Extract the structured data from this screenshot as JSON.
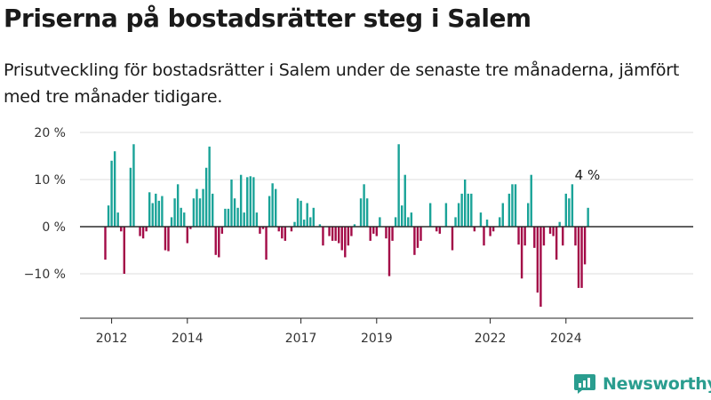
{
  "header": {
    "title": "Priserna på bostadsrätter steg i Salem",
    "subtitle": "Prisutveckling för bostadsrätter i Salem under de senaste tre månaderna, jämfört med tre månader tidigare."
  },
  "brand": {
    "name": "Newsworthy",
    "icon": "newsworthy-logo-icon"
  },
  "colors": {
    "positive": "#1aa398",
    "negative": "#a30a47",
    "grid": "#dddddd",
    "axis": "#222222"
  },
  "chart_data": {
    "type": "bar",
    "x_start": "2011-11",
    "x_step": "1 month",
    "values": [
      -7,
      4.5,
      14,
      16,
      3,
      -1,
      -10,
      0,
      12.5,
      17.5,
      0,
      -2,
      -2.5,
      -1,
      7.3,
      5,
      7,
      5.5,
      6.5,
      -5,
      -5.2,
      2,
      6,
      9,
      4,
      3,
      -3.5,
      -0.5,
      6,
      8,
      6,
      8,
      12.5,
      17,
      7,
      -6,
      -6.5,
      -1.5,
      3.8,
      3.8,
      10,
      6,
      4,
      11,
      3,
      10.5,
      10.7,
      10.5,
      3,
      -1.5,
      -0.5,
      -7,
      6.5,
      9.2,
      8,
      -1,
      -2.5,
      -3,
      0,
      -1,
      1,
      6,
      5.5,
      1.5,
      5,
      2,
      4,
      0,
      0.5,
      -4,
      0,
      -2,
      -3,
      -3,
      -3.5,
      -5,
      -6.5,
      -4,
      -2,
      0.5,
      0,
      6,
      9,
      6,
      -3,
      -1.5,
      -2,
      2,
      0,
      -2.5,
      -10.5,
      -3,
      2,
      17.5,
      4.5,
      11,
      2,
      3,
      -6,
      -4.5,
      -3,
      0,
      0,
      5,
      0,
      -1,
      -1.5,
      0,
      5,
      0,
      -5,
      2,
      5,
      7,
      10,
      7,
      7,
      -1,
      0,
      3,
      -4,
      1.5,
      -2,
      -1,
      0,
      2,
      5,
      0,
      7,
      9,
      9,
      -3.8,
      -11,
      -4,
      5,
      11,
      -4.5,
      -14,
      -17,
      -4,
      0,
      -1.5,
      -2,
      -7,
      1,
      -4,
      7,
      6,
      9,
      -4,
      -13,
      -13,
      -8,
      4
    ],
    "x_ticks": [
      {
        "label": "2012",
        "date": "2012-01"
      },
      {
        "label": "2014",
        "date": "2014-01"
      },
      {
        "label": "2017",
        "date": "2017-01"
      },
      {
        "label": "2019",
        "date": "2019-01"
      },
      {
        "label": "2022",
        "date": "2022-01"
      },
      {
        "label": "2024",
        "date": "2024-01"
      }
    ],
    "y_ticks": [
      {
        "label": "20 %",
        "value": 20
      },
      {
        "label": "10 %",
        "value": 10
      },
      {
        "label": "0 %",
        "value": 0
      },
      {
        "label": "−10 %",
        "value": -10
      }
    ],
    "ylim": [
      -19.5,
      20
    ],
    "ylabel": "",
    "xlabel": "",
    "grid": "horizontal",
    "annotation": {
      "text": "4 %",
      "target": "last"
    }
  }
}
